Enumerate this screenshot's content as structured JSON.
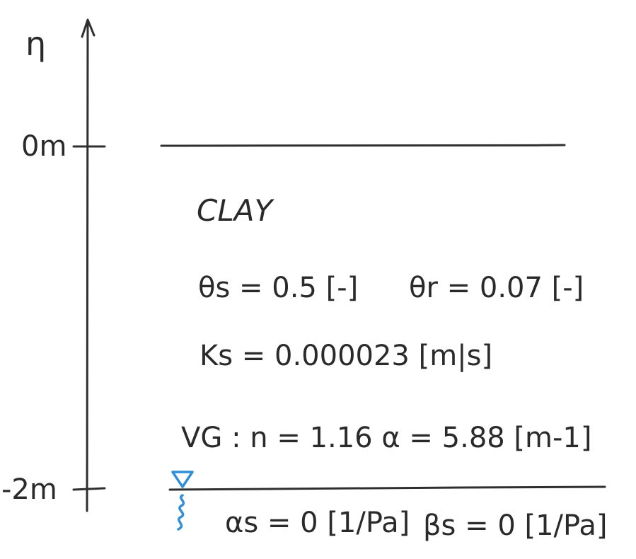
{
  "axis": {
    "label": "η",
    "top_tick_label": "0m",
    "bottom_tick_label": "-2m"
  },
  "layer": {
    "name": "CLAY",
    "theta_s": "θs = 0.5 [-]",
    "theta_r": "θr = 0.07 [-]",
    "ks": "Ks = 0.000023 [m|s]",
    "vg": "VG :  n = 1.16    α = 5.88 [m-1]"
  },
  "boundary": {
    "alpha_s": "αs = 0 [1/Pa]",
    "beta_s": "βs = 0 [1/Pa]"
  },
  "colors": {
    "ink": "#2f2f2f",
    "water_table": "#2f8fd8"
  },
  "icons": [
    "water-table-triangle-icon",
    "groundwater-squiggle-icon"
  ]
}
